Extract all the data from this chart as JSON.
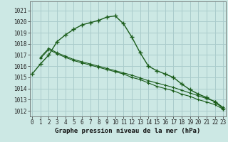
{
  "title": "Graphe pression niveau de la mer (hPa)",
  "bg_color": "#cce8e4",
  "grid_color": "#aacccc",
  "line_color": "#1a5c1a",
  "x_ticks": [
    0,
    1,
    2,
    3,
    4,
    5,
    6,
    7,
    8,
    9,
    10,
    11,
    12,
    13,
    14,
    15,
    16,
    17,
    18,
    19,
    20,
    21,
    22,
    23
  ],
  "y_ticks": [
    1012,
    1013,
    1014,
    1015,
    1016,
    1017,
    1018,
    1019,
    1020,
    1021
  ],
  "ylim": [
    1011.5,
    1021.8
  ],
  "xlim": [
    -0.3,
    23.3
  ],
  "series1_x": [
    0,
    1,
    2,
    3,
    4,
    5,
    6,
    7,
    8,
    9,
    10,
    11,
    12,
    13,
    14,
    15,
    16,
    17,
    18,
    19,
    20,
    21,
    22,
    23
  ],
  "series1_y": [
    1015.3,
    1016.2,
    1017.0,
    1018.2,
    1018.8,
    1019.3,
    1019.7,
    1019.9,
    1020.1,
    1020.4,
    1020.5,
    1019.8,
    1018.6,
    1017.2,
    1016.0,
    1015.6,
    1015.3,
    1015.0,
    1014.4,
    1013.9,
    1013.5,
    1013.2,
    1012.8,
    1012.2
  ],
  "series2_x": [
    1,
    2,
    3,
    4,
    5,
    6,
    7,
    8,
    9,
    10,
    11,
    12,
    13,
    14,
    15,
    16,
    17,
    18,
    19,
    20,
    21,
    22,
    23
  ],
  "series2_y": [
    1016.8,
    1017.6,
    1017.2,
    1016.9,
    1016.6,
    1016.4,
    1016.2,
    1016.0,
    1015.8,
    1015.6,
    1015.4,
    1015.2,
    1014.95,
    1014.7,
    1014.5,
    1014.3,
    1014.1,
    1013.85,
    1013.6,
    1013.35,
    1013.1,
    1012.85,
    1012.3
  ],
  "series3_x": [
    1,
    2,
    3,
    4,
    5,
    6,
    7,
    8,
    9,
    10,
    11,
    12,
    13,
    14,
    15,
    16,
    17,
    18,
    19,
    20,
    21,
    22,
    23
  ],
  "series3_y": [
    1016.7,
    1017.5,
    1017.1,
    1016.8,
    1016.5,
    1016.3,
    1016.1,
    1015.9,
    1015.7,
    1015.5,
    1015.3,
    1015.0,
    1014.8,
    1014.5,
    1014.2,
    1014.0,
    1013.8,
    1013.5,
    1013.3,
    1013.0,
    1012.8,
    1012.55,
    1012.15
  ]
}
